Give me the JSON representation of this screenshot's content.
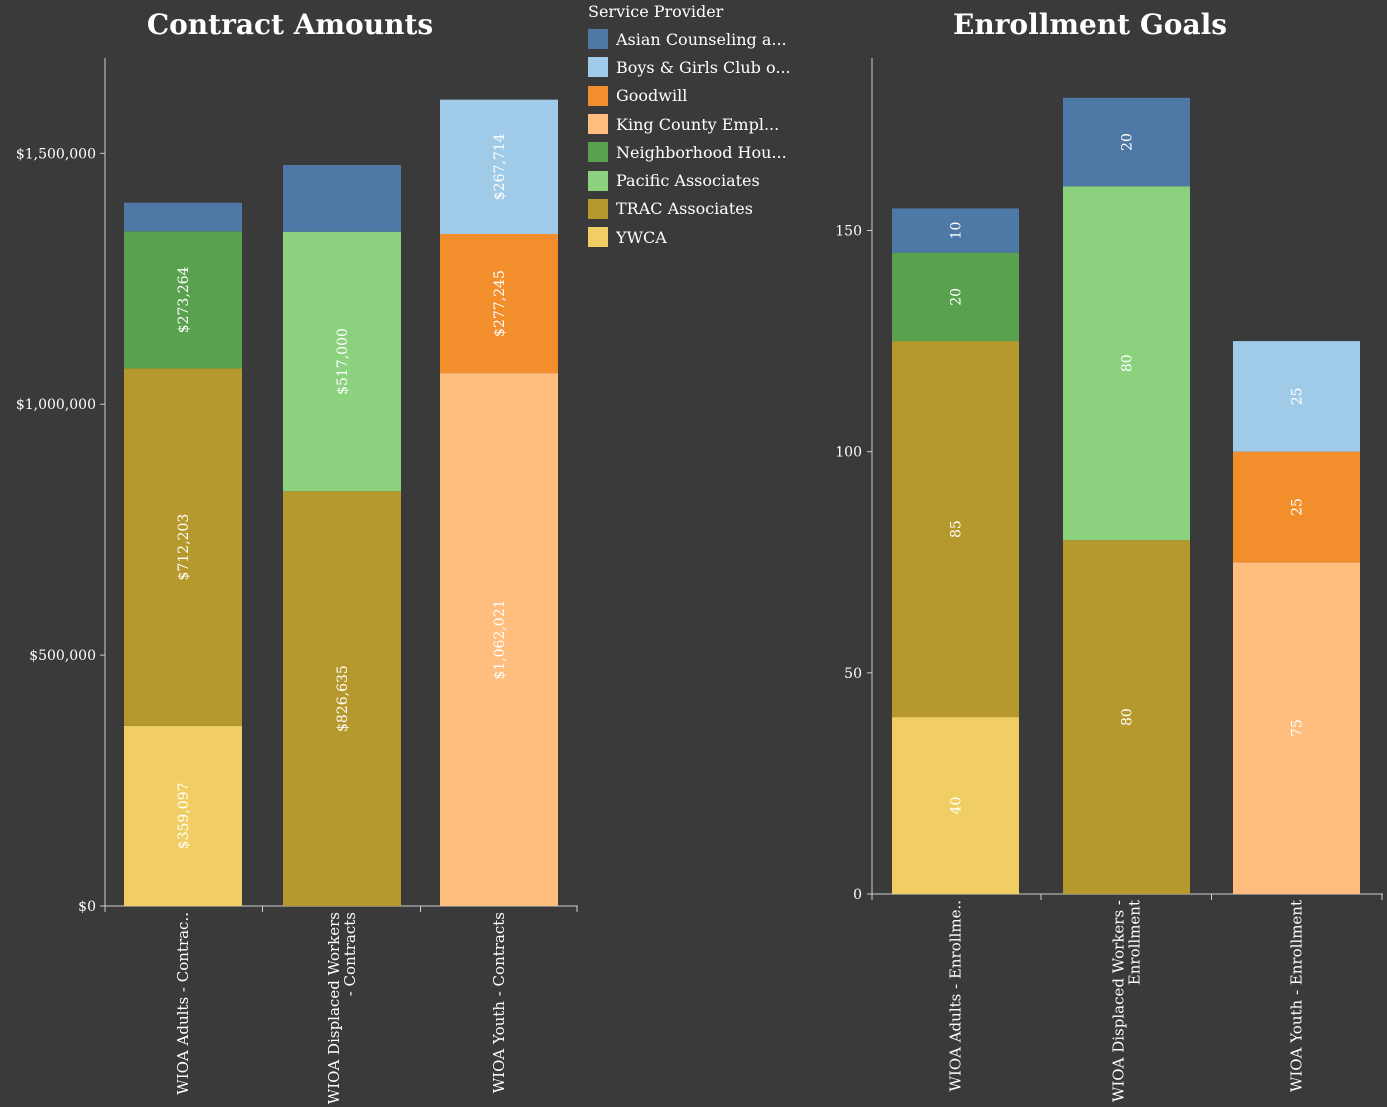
{
  "legend": {
    "title": "Service Provider",
    "items": [
      {
        "label": "Asian Counseling a...",
        "color": "#4e79a7"
      },
      {
        "label": "Boys & Girls Club o...",
        "color": "#a0cbe8"
      },
      {
        "label": "Goodwill",
        "color": "#f28e2b"
      },
      {
        "label": "King County Empl...",
        "color": "#ffbe7d"
      },
      {
        "label": "Neighborhood Hou...",
        "color": "#59a14f"
      },
      {
        "label": "Pacific Associates",
        "color": "#8cd17d"
      },
      {
        "label": "TRAC Associates",
        "color": "#b6992d"
      },
      {
        "label": "YWCA",
        "color": "#f1ce63"
      }
    ]
  },
  "chart_data": [
    {
      "type": "bar",
      "stacked": true,
      "title": "Contract Amounts",
      "ylim": [
        0,
        1690000
      ],
      "yticks": [
        {
          "value": 0,
          "label": "$0"
        },
        {
          "value": 500000,
          "label": "$500,000"
        },
        {
          "value": 1000000,
          "label": "$1,000,000"
        },
        {
          "value": 1500000,
          "label": "$1,500,000"
        }
      ],
      "categories": [
        [
          "WIOA Adults - Contrac.."
        ],
        [
          "WIOA Displaced Workers",
          "- Contracts"
        ],
        [
          "WIOA Youth - Contracts"
        ]
      ],
      "series": [
        {
          "name": "YWCA",
          "color": "#f1ce63",
          "values": [
            359097,
            0,
            0
          ],
          "labels": [
            "$359,097",
            "",
            ""
          ]
        },
        {
          "name": "TRAC Associates",
          "color": "#b6992d",
          "values": [
            712203,
            826635,
            0
          ],
          "labels": [
            "$712,203",
            "$826,635",
            ""
          ]
        },
        {
          "name": "King County Empl...",
          "color": "#ffbe7d",
          "values": [
            0,
            0,
            1062021
          ],
          "labels": [
            "",
            "",
            "$1,062,021"
          ]
        },
        {
          "name": "Pacific Associates",
          "color": "#8cd17d",
          "values": [
            0,
            517000,
            0
          ],
          "labels": [
            "",
            "$517,000",
            ""
          ]
        },
        {
          "name": "Neighborhood Hou...",
          "color": "#59a14f",
          "values": [
            273264,
            0,
            0
          ],
          "labels": [
            "$273,264",
            "",
            ""
          ]
        },
        {
          "name": "Goodwill",
          "color": "#f28e2b",
          "values": [
            0,
            0,
            277245
          ],
          "labels": [
            "",
            "",
            "$277,245"
          ]
        },
        {
          "name": "Boys & Girls Club o...",
          "color": "#a0cbe8",
          "values": [
            0,
            0,
            267714
          ],
          "labels": [
            "",
            "",
            "$267,714"
          ]
        },
        {
          "name": "Asian Counseling a...",
          "color": "#4e79a7",
          "values": [
            57000,
            133000,
            0
          ],
          "labels": [
            "",
            "",
            ""
          ]
        }
      ]
    },
    {
      "type": "bar",
      "stacked": true,
      "title": "Enrollment Goals",
      "ylim": [
        0,
        189
      ],
      "yticks": [
        {
          "value": 0,
          "label": "0"
        },
        {
          "value": 50,
          "label": "50"
        },
        {
          "value": 100,
          "label": "100"
        },
        {
          "value": 150,
          "label": "150"
        }
      ],
      "categories": [
        [
          "WIOA Adults - Enrollme.."
        ],
        [
          "WIOA Displaced Workers -",
          "Enrollment"
        ],
        [
          "WIOA Youth - Enrollment"
        ]
      ],
      "series": [
        {
          "name": "YWCA",
          "color": "#f1ce63",
          "values": [
            40,
            0,
            0
          ],
          "labels": [
            "40",
            "",
            ""
          ]
        },
        {
          "name": "TRAC Associates",
          "color": "#b6992d",
          "values": [
            85,
            80,
            0
          ],
          "labels": [
            "85",
            "80",
            ""
          ]
        },
        {
          "name": "King County Empl...",
          "color": "#ffbe7d",
          "values": [
            0,
            0,
            75
          ],
          "labels": [
            "",
            "",
            "75"
          ]
        },
        {
          "name": "Pacific Associates",
          "color": "#8cd17d",
          "values": [
            0,
            80,
            0
          ],
          "labels": [
            "",
            "80",
            ""
          ]
        },
        {
          "name": "Neighborhood Hou...",
          "color": "#59a14f",
          "values": [
            20,
            0,
            0
          ],
          "labels": [
            "20",
            "",
            ""
          ]
        },
        {
          "name": "Goodwill",
          "color": "#f28e2b",
          "values": [
            0,
            0,
            25
          ],
          "labels": [
            "",
            "",
            "25"
          ]
        },
        {
          "name": "Boys & Girls Club o...",
          "color": "#a0cbe8",
          "values": [
            0,
            0,
            25
          ],
          "labels": [
            "",
            "",
            "25"
          ]
        },
        {
          "name": "Asian Counseling a...",
          "color": "#4e79a7",
          "values": [
            10,
            20,
            0
          ],
          "labels": [
            "10",
            "20",
            ""
          ]
        }
      ]
    }
  ]
}
